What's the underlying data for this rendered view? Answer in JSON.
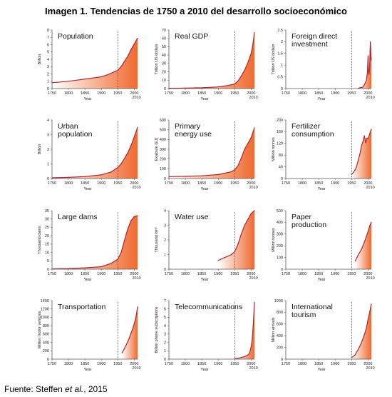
{
  "figure": {
    "title": "Imagen 1. Tendencias de 1750 a 2010 del desarrollo socioeconómico",
    "source_prefix": "Fuente: Steffen ",
    "source_italic": "et al.",
    "source_suffix": ", 2015"
  },
  "colors": {
    "line": "#b3222a",
    "fill_dark": "#ef6a30",
    "fill_light": "#ffffff",
    "axis": "#555555",
    "divider": "#555555"
  },
  "chart_data": [
    {
      "type": "area",
      "title_lines": [
        "Population"
      ],
      "ylabel": "Billion",
      "xlabel": "Year",
      "xlim": [
        1750,
        2010
      ],
      "x_ticks": [
        1750,
        1800,
        1850,
        1900,
        1950,
        2000
      ],
      "x_end_label": "2010",
      "ylim": [
        0,
        8
      ],
      "y_ticks": [
        0,
        1,
        2,
        3,
        4,
        5,
        6,
        7,
        8
      ],
      "x": [
        1750,
        1800,
        1850,
        1900,
        1920,
        1940,
        1950,
        1960,
        1970,
        1980,
        1990,
        2000,
        2010
      ],
      "values": [
        0.8,
        1.0,
        1.3,
        1.6,
        1.9,
        2.3,
        2.5,
        3.0,
        3.7,
        4.4,
        5.3,
        6.1,
        6.9
      ]
    },
    {
      "type": "area",
      "title_lines": [
        "Real GDP"
      ],
      "ylabel": "Trillion US dollars",
      "xlabel": "Year",
      "xlim": [
        1750,
        2010
      ],
      "x_ticks": [
        1750,
        1800,
        1850,
        1900,
        1950,
        2000
      ],
      "x_end_label": "2010",
      "ylim": [
        0,
        70
      ],
      "y_ticks": [
        0,
        10,
        20,
        30,
        40,
        50,
        60,
        70
      ],
      "x": [
        1750,
        1800,
        1850,
        1900,
        1920,
        1940,
        1950,
        1960,
        1970,
        1980,
        1990,
        2000,
        2005,
        2010
      ],
      "values": [
        0.3,
        0.5,
        0.9,
        2.0,
        3.0,
        4.5,
        5.5,
        9,
        15,
        22,
        31,
        42,
        52,
        67
      ]
    },
    {
      "type": "area",
      "title_lines": [
        "Foreign direct",
        "investment"
      ],
      "ylabel": "Trillion US dollars",
      "xlabel": "Year",
      "xlim": [
        1750,
        2010
      ],
      "x_ticks": [
        1750,
        1800,
        1850,
        1900,
        1950,
        2000
      ],
      "x_end_label": "2010",
      "ylim": [
        0,
        2.5
      ],
      "y_ticks": [
        0,
        0.5,
        1,
        1.5,
        2,
        2.5
      ],
      "x": [
        1970,
        1975,
        1980,
        1985,
        1990,
        1995,
        1998,
        2000,
        2001,
        2003,
        2005,
        2007,
        2008,
        2009,
        2010
      ],
      "values": [
        0.01,
        0.03,
        0.05,
        0.06,
        0.2,
        0.35,
        0.7,
        1.4,
        0.8,
        0.6,
        1.0,
        2.0,
        1.7,
        1.2,
        1.3
      ]
    },
    {
      "type": "area",
      "title_lines": [
        "Urban",
        "population"
      ],
      "ylabel": "Billion",
      "xlabel": "Year",
      "xlim": [
        1750,
        2010
      ],
      "x_ticks": [
        1750,
        1800,
        1850,
        1900,
        1950,
        2000
      ],
      "x_end_label": "2010",
      "ylim": [
        0,
        4
      ],
      "y_ticks": [
        0,
        1,
        2,
        3,
        4
      ],
      "x": [
        1750,
        1800,
        1850,
        1900,
        1930,
        1950,
        1960,
        1970,
        1980,
        1990,
        2000,
        2010
      ],
      "values": [
        0.05,
        0.08,
        0.13,
        0.25,
        0.45,
        0.75,
        1.0,
        1.35,
        1.75,
        2.25,
        2.85,
        3.5
      ]
    },
    {
      "type": "area",
      "title_lines": [
        "Primary",
        "energy use"
      ],
      "ylabel": "Exajoule (EJ)",
      "xlabel": "Year",
      "xlim": [
        1750,
        2010
      ],
      "x_ticks": [
        1750,
        1800,
        1850,
        1900,
        1950,
        2000
      ],
      "x_end_label": "2010",
      "ylim": [
        0,
        600
      ],
      "y_ticks": [
        0,
        100,
        200,
        300,
        400,
        500,
        600
      ],
      "x": [
        1750,
        1800,
        1850,
        1900,
        1920,
        1940,
        1950,
        1960,
        1970,
        1980,
        1990,
        2000,
        2010
      ],
      "values": [
        20,
        22,
        28,
        40,
        55,
        70,
        90,
        130,
        210,
        300,
        360,
        420,
        520
      ]
    },
    {
      "type": "area",
      "title_lines": [
        "Fertilizer",
        "consumption"
      ],
      "ylabel": "Million tonnes",
      "xlabel": "Year",
      "xlim": [
        1750,
        2010
      ],
      "x_ticks": [
        1750,
        1800,
        1850,
        1900,
        1950,
        2000
      ],
      "x_end_label": "2010",
      "ylim": [
        0,
        200
      ],
      "y_ticks": [
        0,
        40,
        80,
        120,
        160,
        200
      ],
      "x": [
        1950,
        1955,
        1960,
        1965,
        1970,
        1975,
        1980,
        1985,
        1989,
        1993,
        1997,
        2000,
        2005,
        2010
      ],
      "values": [
        14,
        20,
        28,
        40,
        62,
        82,
        112,
        128,
        146,
        122,
        138,
        136,
        152,
        168
      ]
    },
    {
      "type": "area",
      "title_lines": [
        "Large dams"
      ],
      "ylabel": "Thousand dams",
      "xlabel": "Year",
      "xlim": [
        1750,
        2010
      ],
      "x_ticks": [
        1750,
        1800,
        1850,
        1900,
        1950,
        2000
      ],
      "x_end_label": "2010",
      "ylim": [
        0,
        35
      ],
      "y_ticks": [
        0,
        5,
        10,
        15,
        20,
        25,
        30,
        35
      ],
      "x": [
        1750,
        1800,
        1850,
        1900,
        1930,
        1950,
        1960,
        1970,
        1980,
        1990,
        2000,
        2010
      ],
      "values": [
        0.2,
        0.4,
        0.8,
        1.5,
        3.5,
        6,
        10,
        17,
        24,
        29,
        31.5,
        32
      ]
    },
    {
      "type": "area",
      "title_lines": [
        "Water use"
      ],
      "ylabel": "Thousand km³",
      "xlabel": "Year",
      "xlim": [
        1750,
        2010
      ],
      "x_ticks": [
        1750,
        1800,
        1850,
        1900,
        1950,
        2000
      ],
      "x_end_label": "2010",
      "ylim": [
        0,
        4
      ],
      "y_ticks": [
        0,
        1,
        2,
        3,
        4
      ],
      "x": [
        1900,
        1920,
        1940,
        1950,
        1960,
        1970,
        1980,
        1990,
        2000,
        2010
      ],
      "values": [
        0.6,
        0.8,
        1.0,
        1.2,
        1.7,
        2.4,
        3.0,
        3.4,
        3.8,
        4.0
      ]
    },
    {
      "type": "area",
      "title_lines": [
        "Paper",
        "production"
      ],
      "ylabel": "Million tonnes",
      "xlabel": "Year",
      "xlim": [
        1750,
        2010
      ],
      "x_ticks": [
        1750,
        1800,
        1850,
        1900,
        1950,
        2000
      ],
      "x_end_label": "2010",
      "ylim": [
        0,
        500
      ],
      "y_ticks": [
        0,
        100,
        200,
        300,
        400,
        500
      ],
      "x": [
        1961,
        1970,
        1980,
        1990,
        2000,
        2005,
        2010
      ],
      "values": [
        70,
        120,
        170,
        240,
        320,
        370,
        400
      ]
    },
    {
      "type": "area",
      "title_lines": [
        "Transportation"
      ],
      "ylabel": "Million motor vehicles",
      "xlabel": "Year",
      "xlim": [
        1750,
        2010
      ],
      "x_ticks": [
        1750,
        1800,
        1850,
        1900,
        1950,
        2000
      ],
      "x_end_label": "2010",
      "ylim": [
        0,
        1400
      ],
      "y_ticks": [
        0,
        200,
        400,
        600,
        800,
        1000,
        1200,
        1400
      ],
      "x": [
        1963,
        1970,
        1975,
        1980,
        1985,
        1990,
        1995,
        2000,
        2005,
        2010
      ],
      "values": [
        150,
        250,
        330,
        420,
        510,
        620,
        720,
        850,
        1000,
        1250
      ]
    },
    {
      "type": "area",
      "title_lines": [
        "Telecommunications"
      ],
      "ylabel": "Billion phone subscriptions",
      "xlabel": "Year",
      "xlim": [
        1750,
        2010
      ],
      "x_ticks": [
        1750,
        1800,
        1850,
        1900,
        1950,
        2000
      ],
      "x_end_label": "2010",
      "ylim": [
        0,
        7
      ],
      "y_ticks": [
        0,
        1,
        2,
        3,
        4,
        5,
        6,
        7
      ],
      "x": [
        1950,
        1960,
        1970,
        1980,
        1990,
        1995,
        2000,
        2003,
        2005,
        2007,
        2009,
        2010
      ],
      "values": [
        0.05,
        0.1,
        0.2,
        0.3,
        0.5,
        0.7,
        1.5,
        2.3,
        3.3,
        4.5,
        6.0,
        6.8
      ]
    },
    {
      "type": "area",
      "title_lines": [
        "International",
        "tourism"
      ],
      "ylabel": "Million arrivals",
      "xlabel": "Year",
      "xlim": [
        1750,
        2010
      ],
      "x_ticks": [
        1750,
        1800,
        1850,
        1900,
        1950,
        2000
      ],
      "x_end_label": "2010",
      "ylim": [
        0,
        1000
      ],
      "y_ticks": [
        0,
        200,
        400,
        600,
        800,
        1000
      ],
      "x": [
        1950,
        1960,
        1970,
        1980,
        1990,
        1995,
        2000,
        2005,
        2010
      ],
      "values": [
        25,
        70,
        165,
        280,
        440,
        530,
        680,
        800,
        940
      ]
    }
  ]
}
